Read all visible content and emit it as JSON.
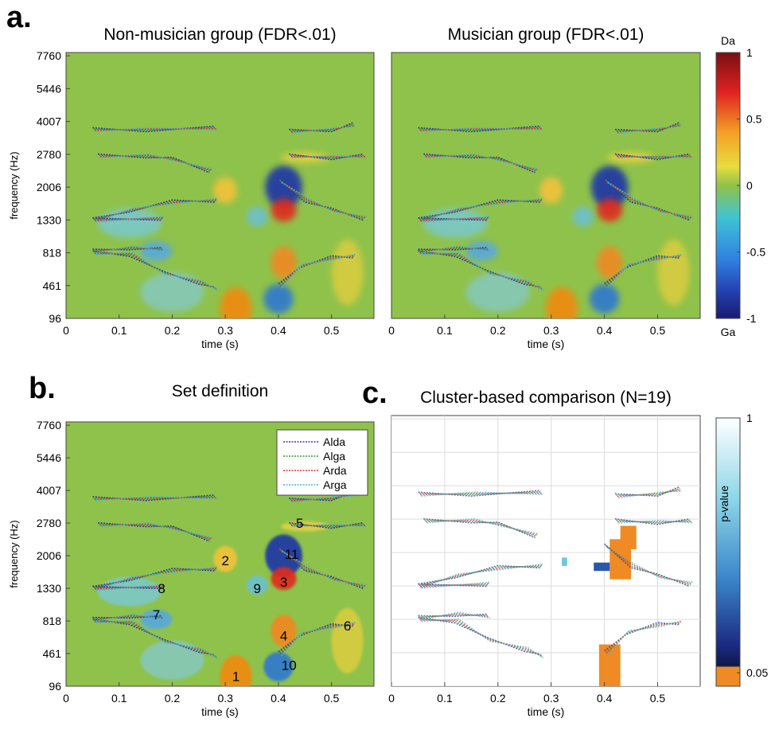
{
  "panel_labels": [
    "a.",
    "b.",
    "c."
  ],
  "chart_data": [
    {
      "type": "heatmap",
      "title": "Non-musician group (FDR<.01)",
      "x_label": "time (s)",
      "y_label": "frequency (Hz)",
      "xlim": [
        0,
        0.58
      ],
      "xticks": [
        0,
        0.1,
        0.2,
        0.3,
        0.4,
        0.5
      ],
      "y_categories": [
        "96",
        "461",
        "818",
        "1330",
        "2006",
        "2780",
        "4007",
        "5446",
        "7760"
      ]
    },
    {
      "type": "heatmap",
      "title": "Musician group (FDR<.01)",
      "x_label": "time (s)",
      "xlim": [
        0,
        0.58
      ],
      "xticks": [
        0,
        0.1,
        0.2,
        0.3,
        0.4,
        0.5
      ]
    },
    {
      "type": "colorbar",
      "top_label": "Da",
      "bottom_label": "Ga",
      "ylim": [
        -1,
        1
      ],
      "yticks": [
        -1,
        -0.5,
        0,
        0.5,
        1
      ]
    },
    {
      "type": "heatmap",
      "title": "Set definition",
      "x_label": "time (s)",
      "y_label": "frequency (Hz)",
      "xlim": [
        0,
        0.58
      ],
      "xticks": [
        0,
        0.1,
        0.2,
        0.3,
        0.4,
        0.5
      ],
      "y_categories": [
        "96",
        "461",
        "818",
        "1330",
        "2006",
        "2780",
        "4007",
        "5446",
        "7760"
      ],
      "series": [
        {
          "name": "Alda",
          "color": "#3636b0"
        },
        {
          "name": "Alga",
          "color": "#2e9a3a"
        },
        {
          "name": "Arda",
          "color": "#e03030"
        },
        {
          "name": "Arga",
          "color": "#40b8d8"
        }
      ],
      "annotations": [
        "1",
        "2",
        "3",
        "4",
        "5",
        "6",
        "7",
        "8",
        "9",
        "10",
        "11"
      ]
    },
    {
      "type": "heatmap",
      "title": "Cluster-based comparison (N=19)",
      "x_label": "time (s)",
      "grid": true,
      "xlim": [
        0,
        0.58
      ],
      "xticks": [
        0,
        0.1,
        0.2,
        0.3,
        0.4,
        0.5
      ]
    },
    {
      "type": "colorbar",
      "y_label": "p-value",
      "ylim": [
        0,
        1
      ],
      "yticks": [
        0.05,
        1
      ]
    }
  ]
}
